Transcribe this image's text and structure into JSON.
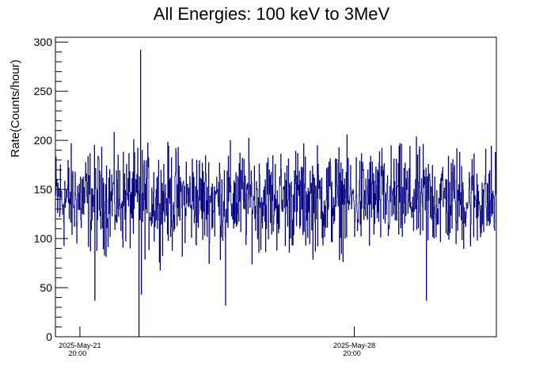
{
  "chart_data": {
    "type": "line",
    "title": "All Energies:  100 keV to 3MeV",
    "ylabel": "Rate(Counts/hour)",
    "xlabel": "",
    "ylim": [
      0,
      305
    ],
    "yticks": [
      0,
      50,
      100,
      150,
      200,
      250,
      300
    ],
    "xticks": [
      {
        "label_line1": "2025-May-21",
        "label_line2": "20:00",
        "hours_from_start": 15
      },
      {
        "label_line1": "2025-May-28",
        "label_line2": "20:00",
        "hours_from_start": 183
      }
    ],
    "x_range_hours": [
      0,
      270
    ],
    "grid": false,
    "legend": "none",
    "line_color": "#000080",
    "series": [
      {
        "description": "hourly count rate",
        "mean": 140,
        "spread": 35,
        "notable_points": [
          {
            "hours_from_start": 52,
            "value": 292
          },
          {
            "hours_from_start": 51,
            "value": 0
          },
          {
            "hours_from_start": 52.6,
            "value": 43
          },
          {
            "hours_from_start": 104,
            "value": 32
          },
          {
            "hours_from_start": 227,
            "value": 37
          },
          {
            "hours_from_start": 24,
            "value": 37
          }
        ]
      }
    ]
  }
}
